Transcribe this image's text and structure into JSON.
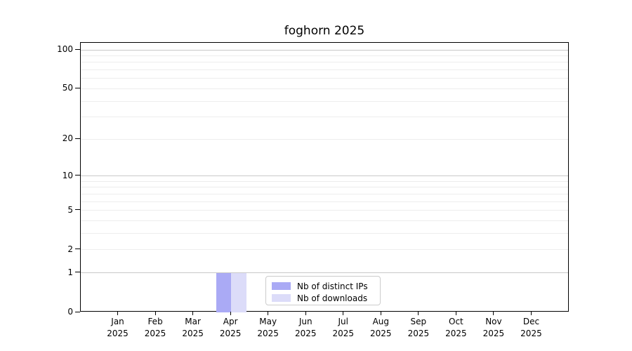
{
  "chart_data": {
    "type": "bar",
    "title": "foghorn 2025",
    "categories": [
      "Jan",
      "Feb",
      "Mar",
      "Apr",
      "May",
      "Jun",
      "Jul",
      "Aug",
      "Sep",
      "Oct",
      "Nov",
      "Dec"
    ],
    "x_year": "2025",
    "series": [
      {
        "name": "Nb of distinct IPs",
        "color": "#aaaaf5",
        "values": [
          0,
          0,
          0,
          1,
          0,
          0,
          0,
          0,
          0,
          0,
          0,
          0
        ]
      },
      {
        "name": "Nb of downloads",
        "color": "#dcdcf9",
        "values": [
          0,
          0,
          0,
          1,
          0,
          0,
          0,
          0,
          0,
          0,
          0,
          0
        ]
      }
    ],
    "yscale": "log1p",
    "ylim": [
      0,
      113
    ],
    "y_ticks": [
      0,
      1,
      2,
      5,
      10,
      20,
      50,
      100
    ],
    "y_major_gridlines": [
      1,
      10,
      100
    ],
    "y_minor_gridlines": [
      2,
      3,
      4,
      5,
      6,
      7,
      8,
      9,
      20,
      30,
      40,
      50,
      60,
      70,
      80,
      90
    ],
    "grid": "on",
    "legend_position": "lower center inside",
    "colors": {
      "axis": "#000000",
      "major_grid": "#c9c9c9",
      "minor_grid": "#ededed",
      "background": "#ffffff",
      "legend_border": "#cccccc"
    }
  }
}
